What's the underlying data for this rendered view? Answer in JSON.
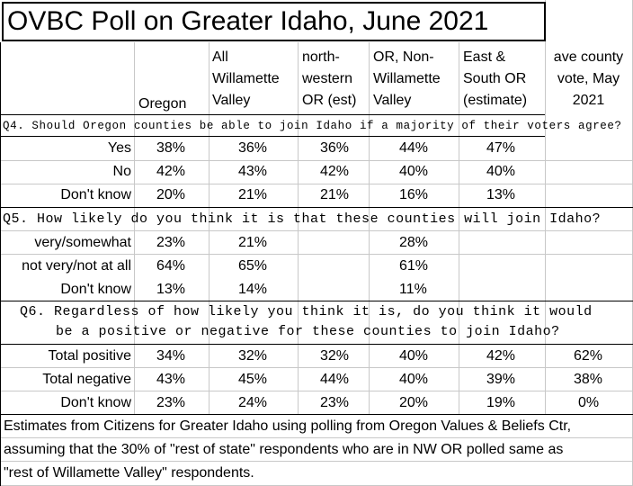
{
  "title": "OVBC Poll on Greater Idaho, June 2021",
  "columns": [
    "Oregon",
    "All\nWillamette\nValley",
    "north-\nwestern\nOR (est)",
    "OR, Non-\nWillamette\nValley",
    "East &\nSouth OR\n(estimate)",
    "ave county\nvote, May\n2021"
  ],
  "q4": {
    "question": "Q4. Should Oregon counties be able to join Idaho if a majority of their voters agree?",
    "rows": [
      {
        "label": "Yes",
        "values": [
          "38%",
          "36%",
          "36%",
          "44%",
          "47%",
          ""
        ]
      },
      {
        "label": "No",
        "values": [
          "42%",
          "43%",
          "42%",
          "40%",
          "40%",
          ""
        ]
      },
      {
        "label": "Don't know",
        "values": [
          "20%",
          "21%",
          "21%",
          "16%",
          "13%",
          ""
        ]
      }
    ]
  },
  "q5": {
    "question": "Q5. How likely do you think it is that these counties will join Idaho?",
    "rows": [
      {
        "label": "very/somewhat",
        "values": [
          "23%",
          "21%",
          "",
          "28%",
          "",
          ""
        ]
      },
      {
        "label": "not very/not at all",
        "values": [
          "64%",
          "65%",
          "",
          "61%",
          "",
          ""
        ]
      },
      {
        "label": "Don't know",
        "values": [
          "13%",
          "14%",
          "",
          "11%",
          "",
          ""
        ]
      }
    ]
  },
  "q6": {
    "question_line1": "Q6. Regardless of how likely you think it is, do you think it would",
    "question_line2": "be a positive or negative for these counties to join Idaho?",
    "rows": [
      {
        "label": "Total positive",
        "values": [
          "34%",
          "32%",
          "32%",
          "40%",
          "42%",
          "62%"
        ]
      },
      {
        "label": "Total negative",
        "values": [
          "43%",
          "45%",
          "44%",
          "40%",
          "39%",
          "38%"
        ]
      },
      {
        "label": "Don't know",
        "values": [
          "23%",
          "24%",
          "23%",
          "20%",
          "19%",
          "0%"
        ]
      }
    ]
  },
  "note": {
    "line1": "Estimates from Citizens for Greater Idaho using polling  from Oregon Values & Beliefs Ctr,",
    "line2": "assuming that the 30% of \"rest of state\" respondents who are in NW OR polled same as",
    "line3": "\"rest of Willamette Valley\" respondents."
  }
}
